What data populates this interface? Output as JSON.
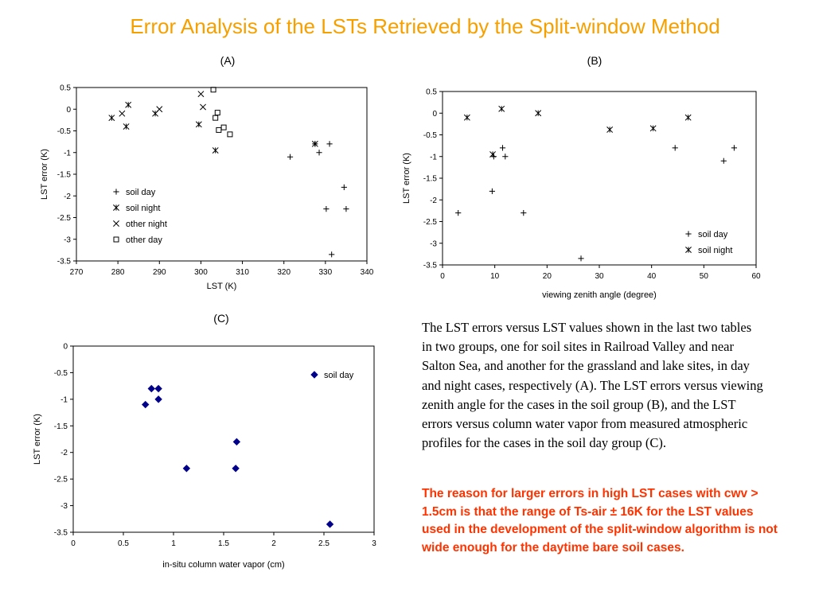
{
  "title": "Error Analysis of the LSTs Retrieved by the Split-window Method",
  "body_text": "The LST errors versus LST values shown in the last two tables in two groups, one for soil sites in Railroad Valley and near Salton Sea, and another for the grassland and lake sites, in day and night cases, respectively (A). The LST errors versus viewing zenith angle for the cases in the soil group (B), and the LST errors versus column water vapor from measured atmospheric profiles for the cases in the soil day group (C).",
  "highlight_text": "The reason for larger errors in high LST cases with cwv > 1.5cm is that the range of Ts-air ± 16K for the LST values used in the development of the split-window algorithm is not wide enough for the daytime bare soil cases.",
  "chart_data": [
    {
      "panel": "(A)",
      "type": "scatter",
      "xlabel": "LST (K)",
      "ylabel": "LST error (K)",
      "xlim": [
        270,
        340
      ],
      "ylim": [
        -3.5,
        0.5
      ],
      "xticks": [
        270,
        280,
        290,
        300,
        310,
        320,
        330,
        340
      ],
      "yticks": [
        0.5,
        0,
        -0.5,
        -1,
        -1.5,
        -2,
        -2.5,
        -3,
        -3.5
      ],
      "legend": "inside-lower-left",
      "series": [
        {
          "name": "soil day",
          "marker": "plus",
          "points": [
            [
              321.5,
              -1.1
            ],
            [
              327.5,
              -0.8
            ],
            [
              328.5,
              -1.0
            ],
            [
              331,
              -0.8
            ],
            [
              334.5,
              -1.8
            ],
            [
              330.2,
              -2.3
            ],
            [
              335,
              -2.3
            ],
            [
              331.5,
              -3.35
            ]
          ]
        },
        {
          "name": "soil night",
          "marker": "asterisk",
          "points": [
            [
              278.5,
              -0.2
            ],
            [
              282.5,
              0.1
            ],
            [
              282,
              -0.4
            ],
            [
              289,
              -0.1
            ],
            [
              299.5,
              -0.35
            ],
            [
              303.5,
              -0.95
            ],
            [
              327.5,
              -0.8
            ]
          ]
        },
        {
          "name": "other night",
          "marker": "x",
          "points": [
            [
              281,
              -0.1
            ],
            [
              290,
              0.0
            ],
            [
              300,
              0.35
            ],
            [
              300.5,
              0.05
            ]
          ]
        },
        {
          "name": "other day",
          "marker": "square",
          "points": [
            [
              303,
              0.45
            ],
            [
              303.5,
              -0.2
            ],
            [
              304,
              -0.08
            ],
            [
              304.3,
              -0.48
            ],
            [
              305.5,
              -0.42
            ],
            [
              307,
              -0.58
            ]
          ]
        }
      ]
    },
    {
      "panel": "(B)",
      "type": "scatter",
      "xlabel": "viewing zenith angle (degree)",
      "ylabel": "LST error (K)",
      "xlim": [
        0,
        60
      ],
      "ylim": [
        -3.5,
        0.5
      ],
      "xticks": [
        0,
        10,
        20,
        30,
        40,
        50,
        60
      ],
      "yticks": [
        0.5,
        0,
        -0.5,
        -1,
        -1.5,
        -2,
        -2.5,
        -3,
        -3.5
      ],
      "legend": "inside-lower-right",
      "series": [
        {
          "name": "soil day",
          "marker": "plus",
          "points": [
            [
              3,
              -2.3
            ],
            [
              9.5,
              -1.8
            ],
            [
              9.8,
              -1.0
            ],
            [
              11.5,
              -0.8
            ],
            [
              12,
              -1.0
            ],
            [
              15.5,
              -2.3
            ],
            [
              26.5,
              -3.35
            ],
            [
              44.5,
              -0.8
            ],
            [
              53.8,
              -1.1
            ],
            [
              55.8,
              -0.8
            ]
          ]
        },
        {
          "name": "soil night",
          "marker": "asterisk",
          "points": [
            [
              4.7,
              -0.1
            ],
            [
              9.6,
              -0.95
            ],
            [
              11.3,
              0.1
            ],
            [
              18.3,
              0.0
            ],
            [
              32,
              -0.38
            ],
            [
              40.3,
              -0.35
            ],
            [
              47,
              -0.1
            ]
          ]
        }
      ]
    },
    {
      "panel": "(C)",
      "type": "scatter",
      "xlabel": "in-situ column water vapor (cm)",
      "ylabel": "LST error (K)",
      "xlim": [
        0,
        3
      ],
      "ylim": [
        -3.5,
        0
      ],
      "xticks": [
        0,
        0.5,
        1,
        1.5,
        2,
        2.5,
        3
      ],
      "yticks": [
        0,
        -0.5,
        -1,
        -1.5,
        -2,
        -2.5,
        -3,
        -3.5
      ],
      "legend": "inside-top-right",
      "series": [
        {
          "name": "soil day",
          "marker": "diamond",
          "color": "#00008b",
          "points": [
            [
              0.72,
              -1.1
            ],
            [
              0.78,
              -0.8
            ],
            [
              0.85,
              -0.8
            ],
            [
              0.85,
              -1.0
            ],
            [
              1.13,
              -2.3
            ],
            [
              1.62,
              -2.3
            ],
            [
              1.63,
              -1.8
            ],
            [
              2.56,
              -3.35
            ]
          ]
        }
      ]
    }
  ]
}
